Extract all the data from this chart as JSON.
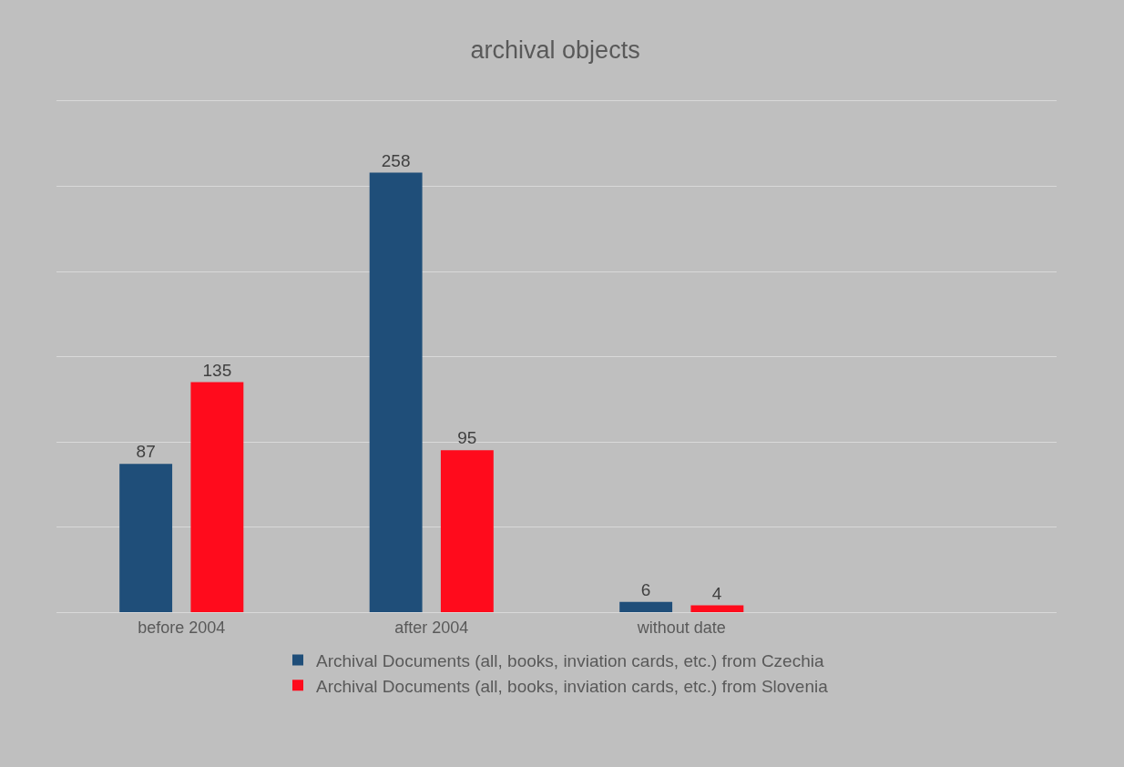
{
  "chart_data": {
    "type": "bar",
    "title": "archival objects",
    "categories": [
      "before 2004",
      "after 2004",
      "without date",
      null
    ],
    "series": [
      {
        "name": "Archival Documents (all, books, inviation cards, etc.) from Czechia",
        "color": "#1f4e79",
        "values": [
          87,
          258,
          6,
          null
        ]
      },
      {
        "name": "Archival Documents (all, books, inviation cards, etc.) from Slovenia",
        "color": "#ff0b1c",
        "values": [
          135,
          95,
          4,
          null
        ]
      }
    ],
    "ylim": [
      0,
      300
    ],
    "yticks": [
      {
        "value": 0,
        "label": null
      },
      {
        "value": 50,
        "label": null
      },
      {
        "value": 100,
        "label": null
      },
      {
        "value": 150,
        "label": null
      },
      {
        "value": 200,
        "label": null
      },
      {
        "value": 250,
        "label": null
      },
      {
        "value": 300,
        "label": null
      }
    ],
    "tick_labels": "x",
    "grid": "y",
    "legend": "bottom",
    "data_labels": true
  }
}
